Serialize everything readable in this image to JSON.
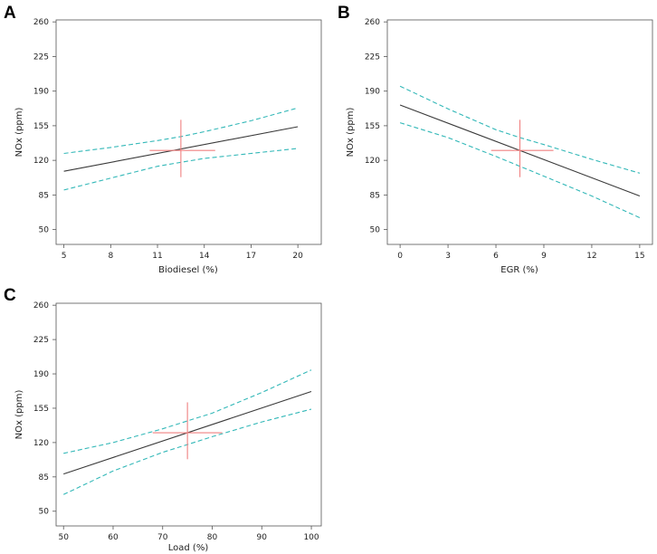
{
  "chart_data": [
    {
      "type": "line",
      "panel": "A",
      "xlabel": "Biodiesel (%)",
      "ylabel": "NOx (ppm)",
      "x_ticks": [
        5,
        8,
        11,
        14,
        17,
        20
      ],
      "y_ticks": [
        50,
        85,
        120,
        155,
        190,
        225,
        260
      ],
      "xlim": [
        4.5,
        21.5
      ],
      "ylim": [
        35,
        262
      ],
      "series": [
        {
          "name": "fit",
          "x": [
            5,
            20
          ],
          "y": [
            109,
            154
          ]
        },
        {
          "name": "upper",
          "x": [
            5,
            8,
            11,
            12.5,
            14,
            17,
            20
          ],
          "y": [
            127,
            133,
            140,
            144,
            149,
            160,
            173
          ]
        },
        {
          "name": "lower",
          "x": [
            5,
            8,
            11,
            12.5,
            14,
            17,
            20
          ],
          "y": [
            90,
            102,
            114,
            118,
            122,
            127,
            132
          ]
        }
      ],
      "crosshair": {
        "x": 12.5,
        "y": 130,
        "x_range": [
          10.5,
          14.7
        ],
        "y_range": [
          103,
          161
        ]
      }
    },
    {
      "type": "line",
      "panel": "B",
      "xlabel": "EGR (%)",
      "ylabel": "NOx (ppm)",
      "x_ticks": [
        0,
        3,
        6,
        9,
        12,
        15
      ],
      "y_ticks": [
        50,
        85,
        120,
        155,
        190,
        225,
        260
      ],
      "xlim": [
        -0.8,
        15.8
      ],
      "ylim": [
        35,
        262
      ],
      "series": [
        {
          "name": "fit",
          "x": [
            0,
            15
          ],
          "y": [
            176,
            84
          ]
        },
        {
          "name": "upper",
          "x": [
            0,
            3,
            6,
            7.5,
            9,
            12,
            15
          ],
          "y": [
            195,
            172,
            151,
            143,
            136,
            121,
            107
          ]
        },
        {
          "name": "lower",
          "x": [
            0,
            3,
            6,
            7.5,
            9,
            12,
            15
          ],
          "y": [
            158,
            143,
            124,
            114,
            104,
            84,
            62
          ]
        }
      ],
      "crosshair": {
        "x": 7.5,
        "y": 130,
        "x_range": [
          5.7,
          9.6
        ],
        "y_range": [
          103,
          161
        ]
      }
    },
    {
      "type": "line",
      "panel": "C",
      "xlabel": "Load (%)",
      "ylabel": "NOx (ppm)",
      "x_ticks": [
        50,
        60,
        70,
        80,
        90,
        100
      ],
      "y_ticks": [
        50,
        85,
        120,
        155,
        190,
        225,
        260
      ],
      "xlim": [
        48.5,
        102
      ],
      "ylim": [
        35,
        262
      ],
      "series": [
        {
          "name": "fit",
          "x": [
            50,
            100
          ],
          "y": [
            88,
            172
          ]
        },
        {
          "name": "upper",
          "x": [
            50,
            60,
            70,
            75,
            80,
            90,
            100
          ],
          "y": [
            109,
            120,
            134,
            142,
            150,
            171,
            194
          ]
        },
        {
          "name": "lower",
          "x": [
            50,
            60,
            70,
            75,
            80,
            90,
            100
          ],
          "y": [
            67,
            91,
            110,
            118,
            126,
            141,
            154
          ]
        }
      ],
      "crosshair": {
        "x": 75,
        "y": 130,
        "x_range": [
          68,
          82
        ],
        "y_range": [
          103,
          161
        ]
      }
    }
  ]
}
